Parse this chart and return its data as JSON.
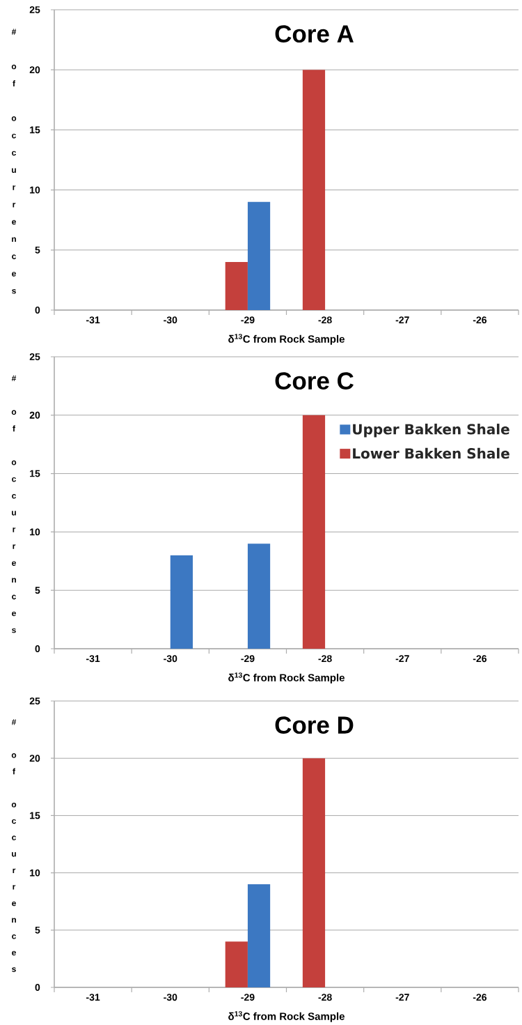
{
  "chart_data": [
    {
      "type": "bar",
      "title": "Core A",
      "xlabel": "δ$^{13}$C from Rock Sample",
      "ylabel": "# of occurrences",
      "categories": [
        "-31",
        "-30",
        "-29",
        "-28",
        "-27",
        "-26"
      ],
      "series": [
        {
          "color": "#c4403c",
          "values": [
            0,
            0,
            4,
            20,
            0,
            0
          ]
        },
        {
          "color": "#3c78c2",
          "values": [
            0,
            0,
            9,
            0,
            0,
            0
          ]
        }
      ],
      "ylim": [
        0,
        25
      ],
      "yticks": [
        0,
        5,
        10,
        15,
        20,
        25
      ],
      "grid": "y",
      "legend": false
    },
    {
      "type": "bar",
      "title": "Core C",
      "xlabel": "δ$^{13}$C from Rock Sample",
      "ylabel": "# of occurrences",
      "categories": [
        "-31",
        "-30",
        "-29",
        "-28",
        "-27",
        "-26"
      ],
      "series": [
        {
          "name": "Lower Bakken Shale",
          "color": "#c4403c",
          "values": [
            0,
            0,
            0,
            20,
            0,
            0
          ]
        },
        {
          "name": "Upper Bakken Shale",
          "color": "#3c78c2",
          "values": [
            0,
            8,
            9,
            0,
            0,
            0
          ]
        }
      ],
      "ylim": [
        0,
        25
      ],
      "yticks": [
        0,
        5,
        10,
        15,
        20,
        25
      ],
      "grid": "y",
      "legend": "top right"
    },
    {
      "type": "bar",
      "title": "Core D",
      "xlabel": "δ$^{13}$C from Rock Sample",
      "ylabel": "# of occurrences",
      "categories": [
        "-31",
        "-30",
        "-29",
        "-28",
        "-27",
        "-26"
      ],
      "series": [
        {
          "color": "#c4403c",
          "values": [
            0,
            0,
            4,
            20,
            0,
            0
          ]
        },
        {
          "color": "#3c78c2",
          "values": [
            0,
            0,
            9,
            0,
            0,
            0
          ]
        }
      ],
      "ylim": [
        0,
        25
      ],
      "yticks": [
        0,
        5,
        10,
        15,
        20,
        25
      ],
      "grid": "y",
      "legend": false
    }
  ]
}
